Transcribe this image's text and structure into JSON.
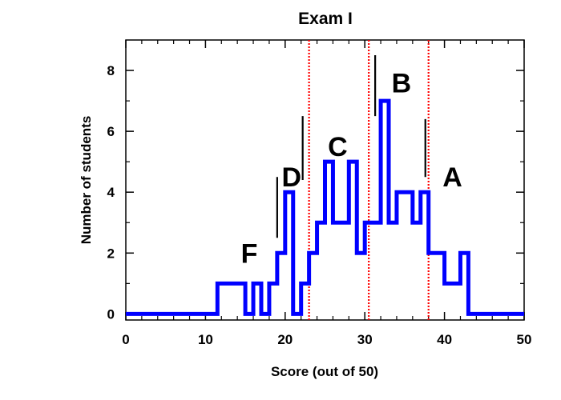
{
  "chart_data": {
    "type": "line",
    "subtype": "step-histogram",
    "title": "Exam I",
    "xlabel": "Score (out of 50)",
    "ylabel": "Number of students",
    "xlim": [
      0,
      50
    ],
    "ylim": [
      -0.2,
      9
    ],
    "x_ticks": [
      0,
      10,
      20,
      30,
      40,
      50
    ],
    "y_ticks": [
      0,
      2,
      4,
      6,
      8
    ],
    "grid": false,
    "line_color": "#0000ff",
    "bin_edges": [
      0,
      11.5,
      15,
      16,
      17,
      18,
      19,
      20,
      21,
      22,
      23,
      24,
      25,
      26,
      27,
      28,
      29,
      30,
      32,
      33,
      34,
      35,
      36,
      37,
      38,
      39,
      40,
      41,
      42,
      43,
      44,
      45,
      50
    ],
    "counts": [
      0,
      1,
      0,
      1,
      0,
      1,
      2,
      4,
      0,
      1,
      2,
      3,
      5,
      3,
      3,
      5,
      2,
      3,
      7,
      3,
      4,
      4,
      3,
      4,
      2,
      2,
      1,
      1,
      2,
      0,
      0,
      0
    ],
    "cutoffs": {
      "color": "#ff0000",
      "x": [
        23,
        30.5,
        38
      ]
    },
    "grade_labels": [
      {
        "text": "F",
        "x": 15.5,
        "y": 2.0
      },
      {
        "text": "D",
        "x": 20.8,
        "y": 4.5
      },
      {
        "text": "C",
        "x": 26.6,
        "y": 5.5
      },
      {
        "text": "B",
        "x": 34.6,
        "y": 7.6
      },
      {
        "text": "A",
        "x": 41.0,
        "y": 4.5
      }
    ],
    "grade_markers": [
      {
        "x": 19.0,
        "y1": 2.5,
        "y2": 4.5
      },
      {
        "x": 22.2,
        "y1": 4.4,
        "y2": 6.5
      },
      {
        "x": 31.3,
        "y1": 6.5,
        "y2": 8.5
      },
      {
        "x": 37.6,
        "y1": 4.5,
        "y2": 6.4
      }
    ]
  }
}
